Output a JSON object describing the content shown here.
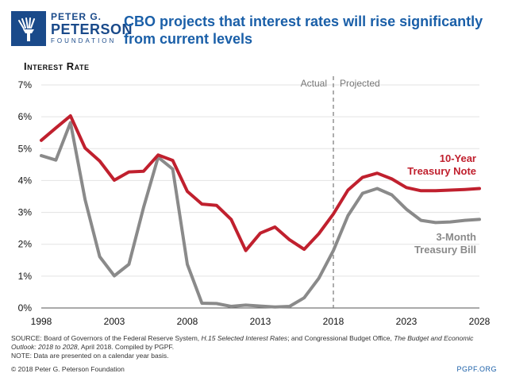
{
  "logo": {
    "line1": "PETER G.",
    "line2": "PETERSON",
    "line3": "FOUNDATION"
  },
  "title": "CBO projects that interest rates will rise significantly from current levels",
  "footer": {
    "source_prefix": "SOURCE: Board of Governors of the Federal Reserve System, ",
    "source_title1": "H.15 Selected Interest Rates",
    "source_mid": "; and Congressional Budget Office, ",
    "source_title2": "The Budget and Economic Outlook: 2018 to 2028",
    "source_suffix": ", April 2018. Compiled by PGPF.",
    "note": "NOTE: Data are presented on a calendar year basis.",
    "copyright": "© 2018 Peter G. Peterson Foundation",
    "site": "PGPF.ORG"
  },
  "colors": {
    "brand": "#1a4a8a",
    "title": "#1a5fa8",
    "ten_year": "#c0202e",
    "three_month": "#8a8a8a"
  },
  "chart_data": {
    "type": "line",
    "ylabel": "Interest Rate",
    "ylim": [
      0,
      7
    ],
    "yticks": [
      0,
      1,
      2,
      3,
      4,
      5,
      6,
      7
    ],
    "ytick_labels": [
      "0%",
      "1%",
      "2%",
      "3%",
      "4%",
      "5%",
      "6%",
      "7%"
    ],
    "xlim": [
      1998,
      2028
    ],
    "xticks": [
      1998,
      2003,
      2008,
      2013,
      2018,
      2023,
      2028
    ],
    "xtick_labels": [
      "1998",
      "2003",
      "2008",
      "2013",
      "2018",
      "2023",
      "2028"
    ],
    "divider": {
      "x": 2018,
      "left_label": "Actual",
      "right_label": "Projected"
    },
    "x": [
      1998,
      1999,
      2000,
      2001,
      2002,
      2003,
      2004,
      2005,
      2006,
      2007,
      2008,
      2009,
      2010,
      2011,
      2012,
      2013,
      2014,
      2015,
      2016,
      2017,
      2018,
      2019,
      2020,
      2021,
      2022,
      2023,
      2024,
      2025,
      2026,
      2027,
      2028
    ],
    "series": [
      {
        "name": "10-Year Treasury Note",
        "label_lines": [
          "10-Year",
          "Treasury Note"
        ],
        "values": [
          5.26,
          5.65,
          6.03,
          5.02,
          4.61,
          4.01,
          4.27,
          4.29,
          4.8,
          4.63,
          3.66,
          3.26,
          3.22,
          2.78,
          1.8,
          2.35,
          2.54,
          2.14,
          1.84,
          2.33,
          2.95,
          3.7,
          4.1,
          4.23,
          4.05,
          3.78,
          3.68,
          3.68,
          3.7,
          3.72,
          3.75
        ]
      },
      {
        "name": "3-Month Treasury Bill",
        "label_lines": [
          "3-Month",
          "Treasury Bill"
        ],
        "values": [
          4.78,
          4.64,
          5.82,
          3.4,
          1.61,
          1.01,
          1.37,
          3.15,
          4.73,
          4.36,
          1.37,
          0.15,
          0.14,
          0.05,
          0.09,
          0.06,
          0.03,
          0.05,
          0.32,
          0.93,
          1.8,
          2.9,
          3.6,
          3.75,
          3.55,
          3.1,
          2.75,
          2.68,
          2.7,
          2.75,
          2.78
        ]
      }
    ]
  }
}
